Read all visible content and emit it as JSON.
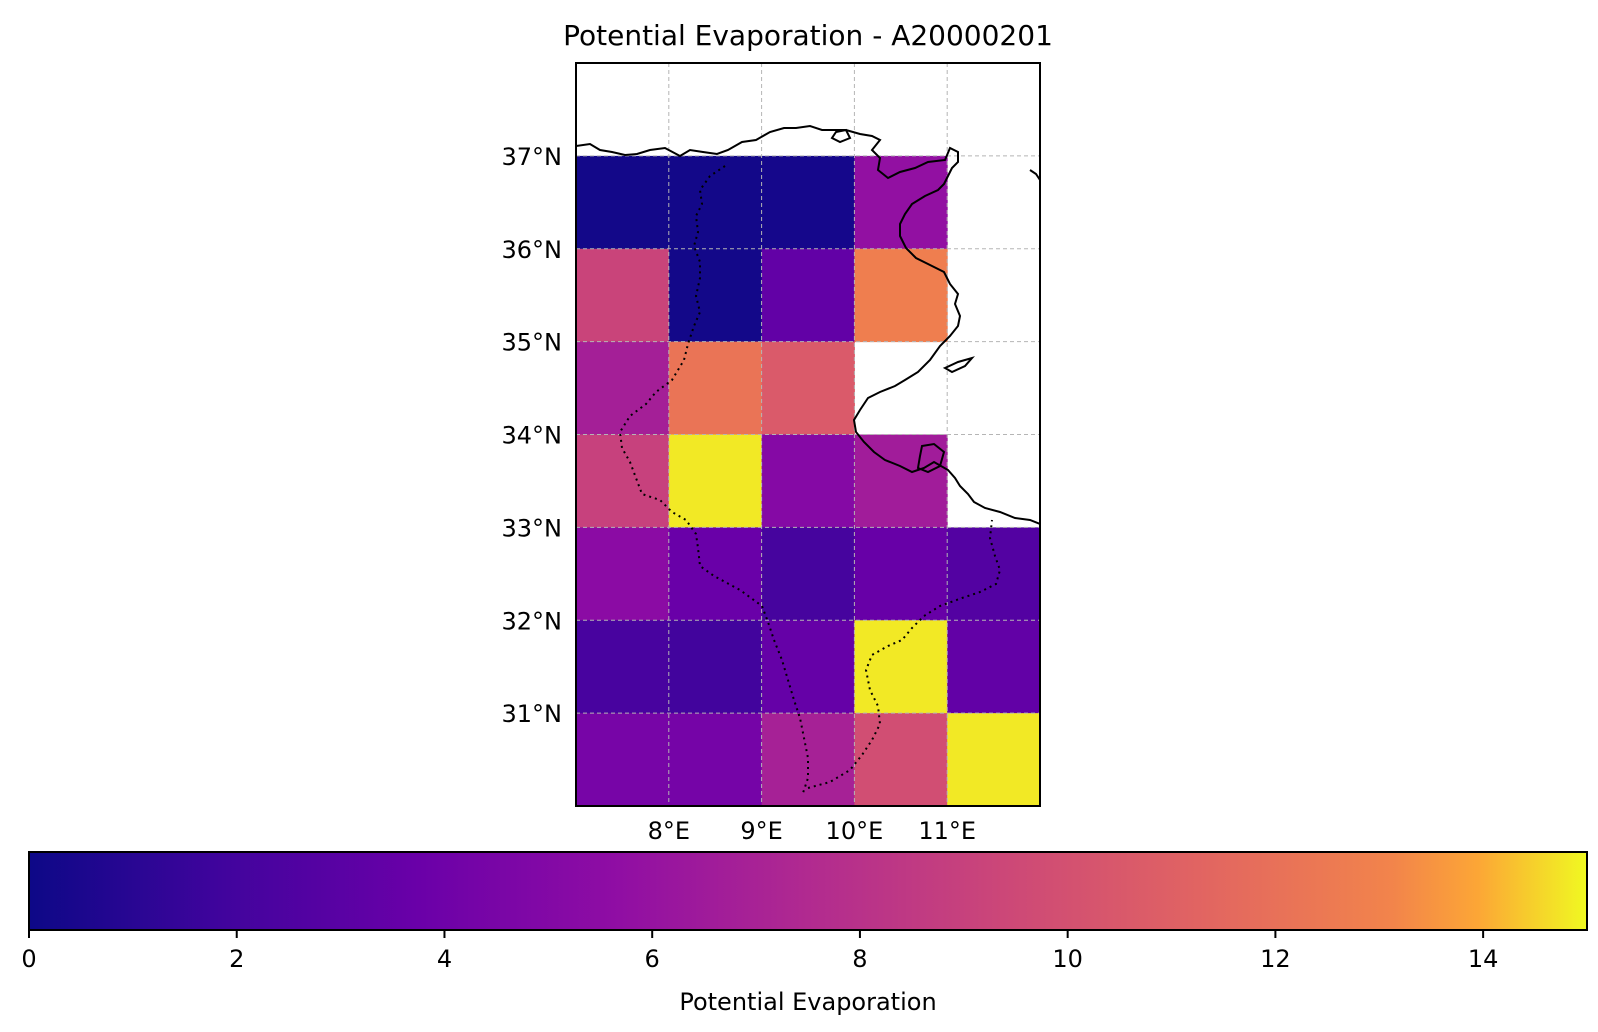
{
  "chart_data": {
    "type": "heatmap",
    "title": "Potential Evaporation - A20000201",
    "colorbar_label": "Potential Evaporation",
    "colormap": "plasma",
    "colorbar_range": [
      0,
      15
    ],
    "colorbar_ticks": [
      "0",
      "2",
      "4",
      "6",
      "8",
      "10",
      "12",
      "14"
    ],
    "lon_range": [
      7.0,
      12.0
    ],
    "lat_range": [
      30.0,
      38.0
    ],
    "x_tick_labels": [
      "8°E",
      "9°E",
      "10°E",
      "11°E"
    ],
    "y_tick_labels": [
      "37°N",
      "36°N",
      "35°N",
      "34°N",
      "33°N",
      "32°N",
      "31°N"
    ],
    "gridlines": true,
    "cells": [
      {
        "lon": 7,
        "lat": 36,
        "value": 0.2
      },
      {
        "lon": 8,
        "lat": 36,
        "value": 0.2
      },
      {
        "lon": 9,
        "lat": 36,
        "value": 0.3
      },
      {
        "lon": 10,
        "lat": 36,
        "value": 5.8
      },
      {
        "lon": 7,
        "lat": 35,
        "value": 9.2
      },
      {
        "lon": 8,
        "lat": 35,
        "value": 0.2
      },
      {
        "lon": 9,
        "lat": 35,
        "value": 3.4
      },
      {
        "lon": 10,
        "lat": 35,
        "value": 12.8
      },
      {
        "lon": 7,
        "lat": 34,
        "value": 6.8
      },
      {
        "lon": 8,
        "lat": 34,
        "value": 12.2
      },
      {
        "lon": 9,
        "lat": 34,
        "value": 10.6
      },
      {
        "lon": 7,
        "lat": 33,
        "value": 9.0
      },
      {
        "lon": 8,
        "lat": 33,
        "value": 14.8
      },
      {
        "lon": 9,
        "lat": 33,
        "value": 5.1
      },
      {
        "lon": 10,
        "lat": 33,
        "value": 6.6
      },
      {
        "lon": 7,
        "lat": 32,
        "value": 5.4
      },
      {
        "lon": 8,
        "lat": 32,
        "value": 3.7
      },
      {
        "lon": 9,
        "lat": 32,
        "value": 2.1
      },
      {
        "lon": 10,
        "lat": 32,
        "value": 3.6
      },
      {
        "lon": 11,
        "lat": 32,
        "value": 2.7
      },
      {
        "lon": 7,
        "lat": 31,
        "value": 2.2
      },
      {
        "lon": 8,
        "lat": 31,
        "value": 1.9
      },
      {
        "lon": 9,
        "lat": 31,
        "value": 3.5
      },
      {
        "lon": 10,
        "lat": 31,
        "value": 14.8
      },
      {
        "lon": 11,
        "lat": 31,
        "value": 3.4
      },
      {
        "lon": 7,
        "lat": 30,
        "value": 4.4
      },
      {
        "lon": 8,
        "lat": 30,
        "value": 4.3
      },
      {
        "lon": 9,
        "lat": 30,
        "value": 6.9
      },
      {
        "lon": 10,
        "lat": 30,
        "value": 9.8
      },
      {
        "lon": 11,
        "lat": 30,
        "value": 14.8
      }
    ]
  }
}
